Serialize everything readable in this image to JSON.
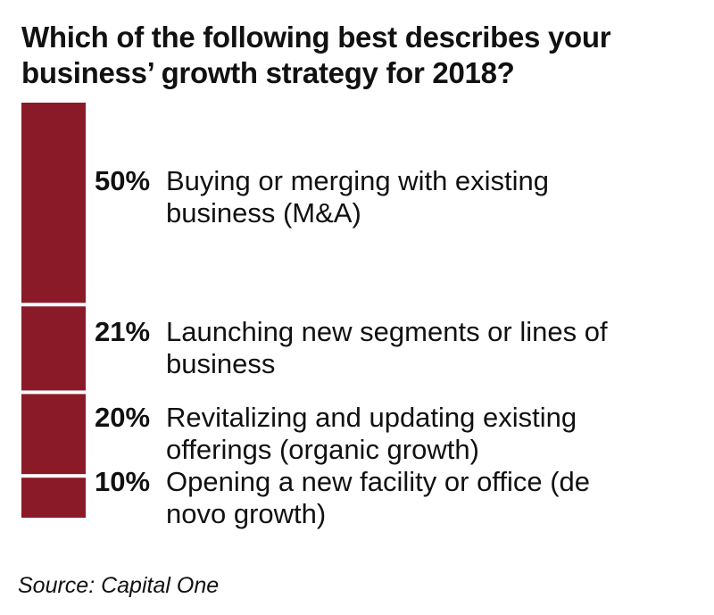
{
  "chart_data": {
    "type": "bar",
    "title": "Which of the following best describes your business’ growth strategy for 2018?",
    "categories": [
      "Buying or merging with existing business (M&A)",
      "Launching new segments or lines of business",
      "Revitalizing and updating existing offerings (organic growth)",
      "Opening a new facility or office (de novo growth)"
    ],
    "values": [
      50,
      21,
      20,
      10
    ],
    "value_labels": [
      "50%",
      "21%",
      "20%",
      "10%"
    ],
    "stacked": true,
    "orientation": "vertical-stack",
    "bar_color": "#8b1a28",
    "source": "Source: Capital One"
  }
}
